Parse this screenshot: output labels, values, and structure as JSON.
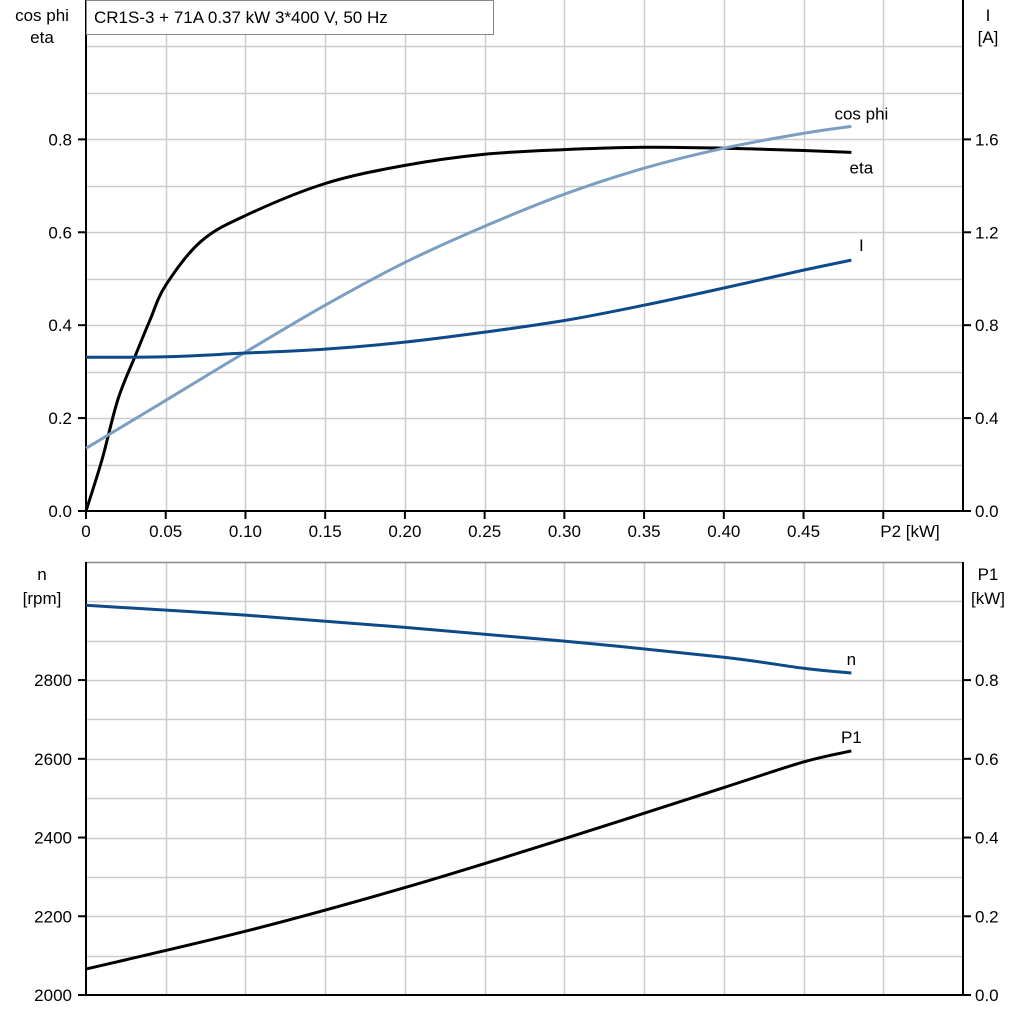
{
  "title": "CR1S-3 + 71A   0.37 kW   3*400 V, 50 Hz",
  "colors": {
    "eta": "#000000",
    "cos_phi": "#7b9fc1",
    "I": "#0e4a8a",
    "n": "#0e4a8a",
    "P1": "#000000",
    "grid": "#cccccc"
  },
  "chart_data": [
    {
      "type": "line",
      "xlabel": "P2 [kW]",
      "xlim": [
        0,
        0.55
      ],
      "xticks": [
        "0",
        "0.05",
        "0.10",
        "0.15",
        "0.20",
        "0.25",
        "0.30",
        "0.35",
        "0.40",
        "0.45"
      ],
      "xtick_values": [
        0,
        0.05,
        0.1,
        0.15,
        0.2,
        0.25,
        0.3,
        0.35,
        0.4,
        0.45
      ],
      "ylabel_left": [
        "cos phi",
        "eta"
      ],
      "ylim_left": [
        0,
        1.1
      ],
      "yticks_left": [
        "0.0",
        "0.2",
        "0.4",
        "0.6",
        "0.8"
      ],
      "ylabel_right": [
        "I",
        "[A]"
      ],
      "ylim_right": [
        0,
        2.2
      ],
      "yticks_right": [
        "0.0",
        "0.4",
        "0.8",
        "1.2",
        "1.6"
      ],
      "grid": true,
      "series": [
        {
          "name": "eta",
          "axis": "left",
          "color": "#000000",
          "x": [
            0,
            0.01,
            0.02,
            0.031,
            0.04,
            0.05,
            0.072,
            0.1,
            0.15,
            0.2,
            0.25,
            0.3,
            0.35,
            0.4,
            0.45,
            0.48
          ],
          "y": [
            0,
            0.11,
            0.24,
            0.335,
            0.41,
            0.486,
            0.58,
            0.636,
            0.705,
            0.744,
            0.768,
            0.778,
            0.783,
            0.781,
            0.776,
            0.772
          ]
        },
        {
          "name": "cos phi",
          "axis": "left",
          "color": "#7b9fc1",
          "x": [
            0,
            0.05,
            0.1,
            0.15,
            0.2,
            0.25,
            0.3,
            0.35,
            0.4,
            0.45,
            0.48
          ],
          "y": [
            0.135,
            0.238,
            0.342,
            0.443,
            0.535,
            0.613,
            0.682,
            0.738,
            0.781,
            0.813,
            0.828
          ]
        },
        {
          "name": "I",
          "axis": "right",
          "color": "#0e4a8a",
          "x": [
            0,
            0.05,
            0.1,
            0.15,
            0.2,
            0.25,
            0.3,
            0.35,
            0.4,
            0.45,
            0.48
          ],
          "y": [
            0.662,
            0.664,
            0.68,
            0.697,
            0.727,
            0.77,
            0.82,
            0.886,
            0.96,
            1.037,
            1.08
          ]
        }
      ]
    },
    {
      "type": "line",
      "xlim": [
        0,
        0.55
      ],
      "xtick_values": [
        0,
        0.05,
        0.1,
        0.15,
        0.2,
        0.25,
        0.3,
        0.35,
        0.4,
        0.45,
        0.5
      ],
      "ylabel_left": [
        "n",
        "[rpm]"
      ],
      "ylim_left": [
        2000,
        3100
      ],
      "yticks_left": [
        "2000",
        "2200",
        "2400",
        "2600",
        "2800"
      ],
      "ylabel_right": [
        "P1",
        "[kW]"
      ],
      "ylim_right": [
        0,
        1.1
      ],
      "yticks_right": [
        "0.0",
        "0.2",
        "0.4",
        "0.6",
        "0.8"
      ],
      "grid": true,
      "series": [
        {
          "name": "n",
          "axis": "left",
          "color": "#0e4a8a",
          "x": [
            0,
            0.1,
            0.2,
            0.3,
            0.4,
            0.45,
            0.48
          ],
          "y": [
            2990,
            2965,
            2934,
            2899,
            2858,
            2830,
            2818
          ]
        },
        {
          "name": "P1",
          "axis": "right",
          "color": "#000000",
          "x": [
            0,
            0.1,
            0.2,
            0.3,
            0.4,
            0.45,
            0.48
          ],
          "y": [
            0.066,
            0.162,
            0.273,
            0.397,
            0.527,
            0.592,
            0.62
          ]
        }
      ]
    }
  ]
}
